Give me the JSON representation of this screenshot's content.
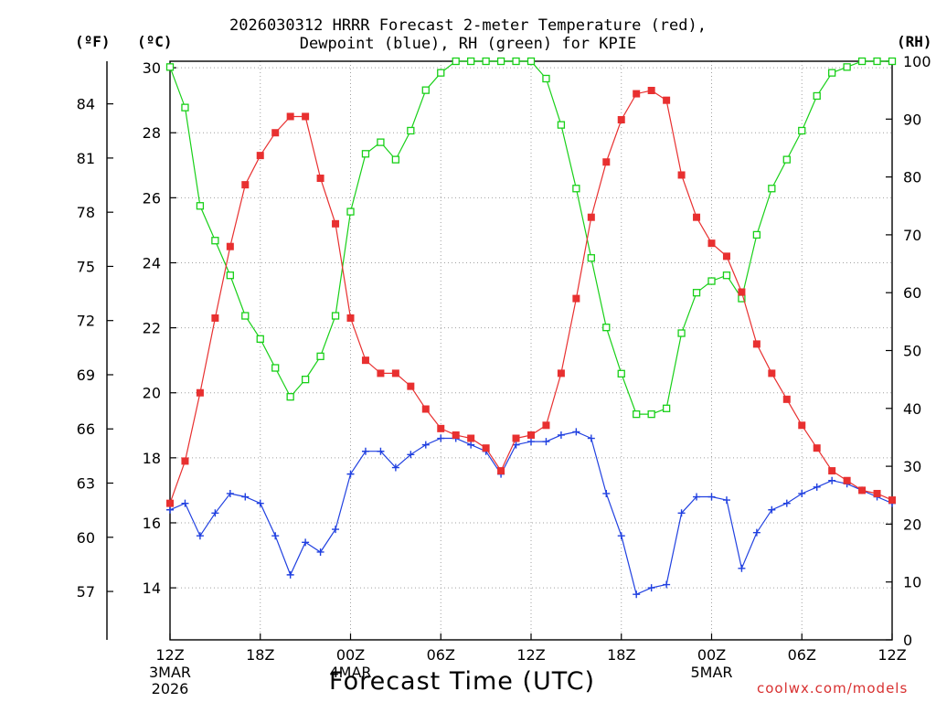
{
  "header": {
    "title_line1": "2026030312 HRRR Forecast 2-meter Temperature (red),",
    "title_line2": "Dewpoint (blue), RH (green) for KPIE",
    "unit_f": "(ºF)",
    "unit_c": "(ºC)",
    "unit_rh": "(RH)"
  },
  "footer": {
    "xaxis_title": "Forecast Time (UTC)",
    "credit": "coolwx.com/models"
  },
  "colors": {
    "temperature": "#e83030",
    "dewpoint": "#2040e0",
    "rh": "#18d018",
    "grid": "#a0a0a0"
  },
  "chart_data": {
    "type": "line",
    "title": "2026030312 HRRR Forecast 2-meter Temperature (red), Dewpoint (blue), RH (green) for KPIE",
    "xlabel": "Forecast Time (UTC)",
    "ylabel_left_f": "(ºF)",
    "ylabel_left_c": "(ºC)",
    "ylabel_right": "(RH)",
    "x_range_hours": [
      0,
      48
    ],
    "ylim_c": [
      12.4,
      30.2
    ],
    "ylim_rh": [
      0,
      100
    ],
    "grid": true,
    "x_ticks": [
      {
        "hour": 0,
        "label": "12Z",
        "sub": [
          "3MAR",
          "2026"
        ]
      },
      {
        "hour": 6,
        "label": "18Z",
        "sub": []
      },
      {
        "hour": 12,
        "label": "00Z",
        "sub": [
          "4MAR"
        ]
      },
      {
        "hour": 18,
        "label": "06Z",
        "sub": []
      },
      {
        "hour": 24,
        "label": "12Z",
        "sub": []
      },
      {
        "hour": 30,
        "label": "18Z",
        "sub": []
      },
      {
        "hour": 36,
        "label": "00Z",
        "sub": [
          "5MAR"
        ]
      },
      {
        "hour": 42,
        "label": "06Z",
        "sub": []
      },
      {
        "hour": 48,
        "label": "12Z",
        "sub": []
      }
    ],
    "y_ticks_c": [
      14,
      16,
      18,
      20,
      22,
      24,
      26,
      28,
      30
    ],
    "y_ticks_f": [
      57,
      60,
      63,
      66,
      69,
      72,
      75,
      78,
      81,
      84
    ],
    "y_ticks_rh": [
      0,
      10,
      20,
      30,
      40,
      50,
      60,
      70,
      80,
      90,
      100
    ],
    "series": [
      {
        "name": "Temperature",
        "unit": "C",
        "marker": "filled-square",
        "values": [
          16.6,
          17.9,
          20.0,
          22.3,
          24.5,
          26.4,
          27.3,
          28.0,
          28.5,
          28.5,
          26.6,
          25.2,
          22.3,
          21.0,
          20.6,
          20.6,
          20.2,
          19.5,
          18.9,
          18.7,
          18.6,
          18.3,
          17.6,
          18.6,
          18.7,
          19.0,
          20.6,
          22.9,
          25.4,
          27.1,
          28.4,
          29.2,
          29.3,
          29.0,
          26.7,
          25.4,
          24.6,
          24.2,
          23.1,
          21.5,
          20.6,
          19.8,
          19.0,
          18.3,
          17.6,
          17.3,
          17.0,
          16.9,
          16.7
        ]
      },
      {
        "name": "Dewpoint",
        "unit": "C",
        "marker": "plus",
        "values": [
          16.4,
          16.6,
          15.6,
          16.3,
          16.9,
          16.8,
          16.6,
          15.6,
          14.4,
          15.4,
          15.1,
          15.8,
          17.5,
          18.2,
          18.2,
          17.7,
          18.1,
          18.4,
          18.6,
          18.6,
          18.4,
          18.2,
          17.5,
          18.4,
          18.5,
          18.5,
          18.7,
          18.8,
          18.6,
          16.9,
          15.6,
          13.8,
          14.0,
          14.1,
          16.3,
          16.8,
          16.8,
          16.7,
          14.6,
          15.7,
          16.4,
          16.6,
          16.9,
          17.1,
          17.3,
          17.2,
          17.0,
          16.8,
          16.6
        ]
      },
      {
        "name": "RH",
        "unit": "%",
        "marker": "open-square",
        "values": [
          99,
          92,
          75,
          69,
          63,
          56,
          52,
          47,
          42,
          45,
          49,
          56,
          74,
          84,
          86,
          83,
          88,
          95,
          98,
          100,
          100,
          100,
          100,
          100,
          100,
          97,
          89,
          78,
          66,
          54,
          46,
          39,
          39,
          40,
          53,
          60,
          62,
          63,
          59,
          70,
          78,
          83,
          88,
          94,
          98,
          99,
          100,
          100,
          100
        ]
      }
    ]
  }
}
